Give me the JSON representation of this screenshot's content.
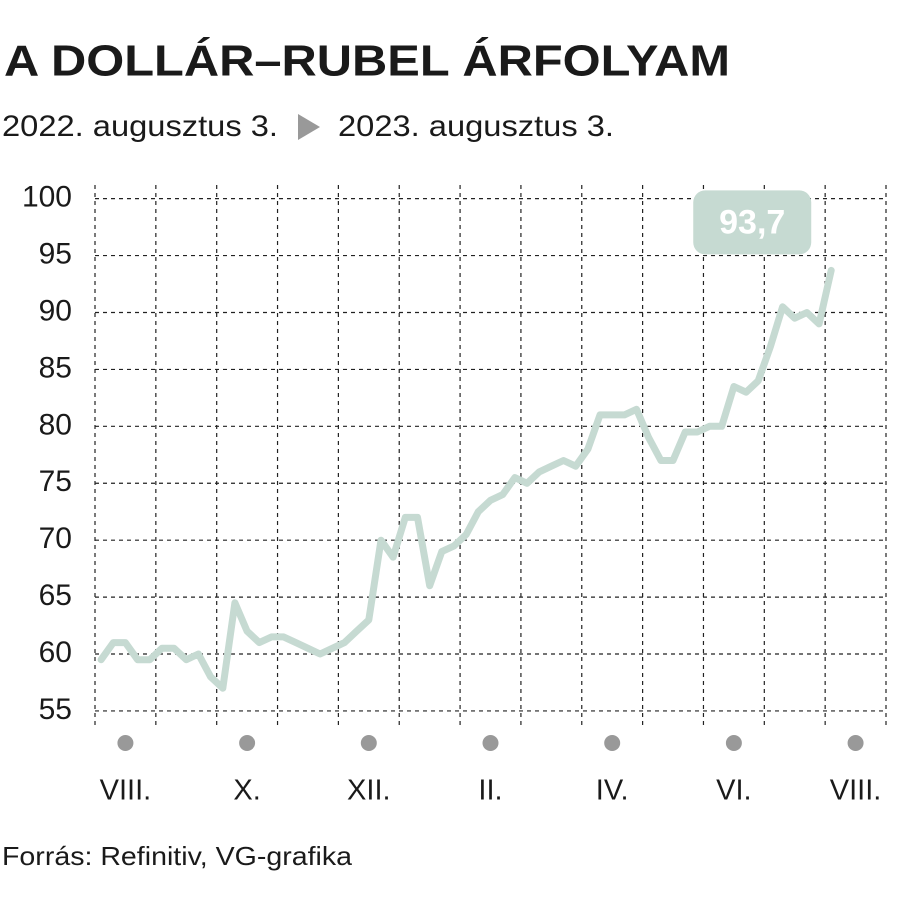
{
  "chart_data": {
    "type": "line",
    "title": "A DOLLÁR–RUBEL ÁRFOLYAM",
    "subtitle": [
      "2022. augusztus 3.",
      "2023. augusztus 3."
    ],
    "source": "Forrás: Refinitiv, VG-grafika",
    "categories": [
      null,
      null,
      "VIII.",
      null,
      null,
      null,
      null,
      null,
      null,
      null,
      null,
      null,
      "X.",
      null,
      null,
      null,
      null,
      null,
      null,
      null,
      null,
      null,
      "XII.",
      null,
      null,
      null,
      null,
      null,
      null,
      null,
      null,
      null,
      "II.",
      null,
      null,
      null,
      null,
      null,
      null,
      null,
      null,
      null,
      "IV.",
      null,
      null,
      null,
      null,
      null,
      null,
      null,
      null,
      null,
      "VI.",
      null,
      null,
      null,
      null,
      null,
      null,
      null,
      null,
      null,
      "VIII.",
      null,
      null
    ],
    "values": [
      59.5,
      61,
      61,
      59.5,
      59.5,
      60.5,
      60.5,
      59.5,
      60,
      58,
      57,
      64.5,
      62,
      61,
      61.5,
      61.5,
      61,
      60.5,
      60,
      60.5,
      61,
      62,
      63,
      70,
      68.5,
      72,
      72,
      66,
      69,
      69.5,
      70.5,
      72.5,
      73.5,
      74,
      75.5,
      75,
      76,
      76.5,
      77,
      76.5,
      78,
      81,
      81,
      81,
      81.5,
      79,
      77,
      77,
      79.5,
      79.5,
      80,
      80,
      83.5,
      83,
      84,
      87,
      90.5,
      89.5,
      90,
      89,
      93.7,
      null,
      null,
      null,
      null
    ],
    "value_labels": [
      null,
      null,
      null,
      null,
      null,
      null,
      null,
      null,
      null,
      null,
      null,
      null,
      null,
      null,
      null,
      null,
      null,
      null,
      null,
      null,
      null,
      null,
      null,
      null,
      null,
      null,
      null,
      null,
      null,
      null,
      null,
      null,
      null,
      null,
      null,
      null,
      null,
      null,
      null,
      null,
      null,
      null,
      null,
      null,
      null,
      null,
      null,
      null,
      null,
      null,
      null,
      null,
      null,
      null,
      null,
      null,
      null,
      null,
      null,
      null,
      "93,7",
      null,
      null,
      null,
      null
    ],
    "color": "#c6dad2",
    "ylim": [
      53.5,
      101.2
    ],
    "yticks": [
      55,
      60,
      65,
      70,
      75,
      80,
      85,
      90,
      95,
      100
    ],
    "grid": true
  }
}
